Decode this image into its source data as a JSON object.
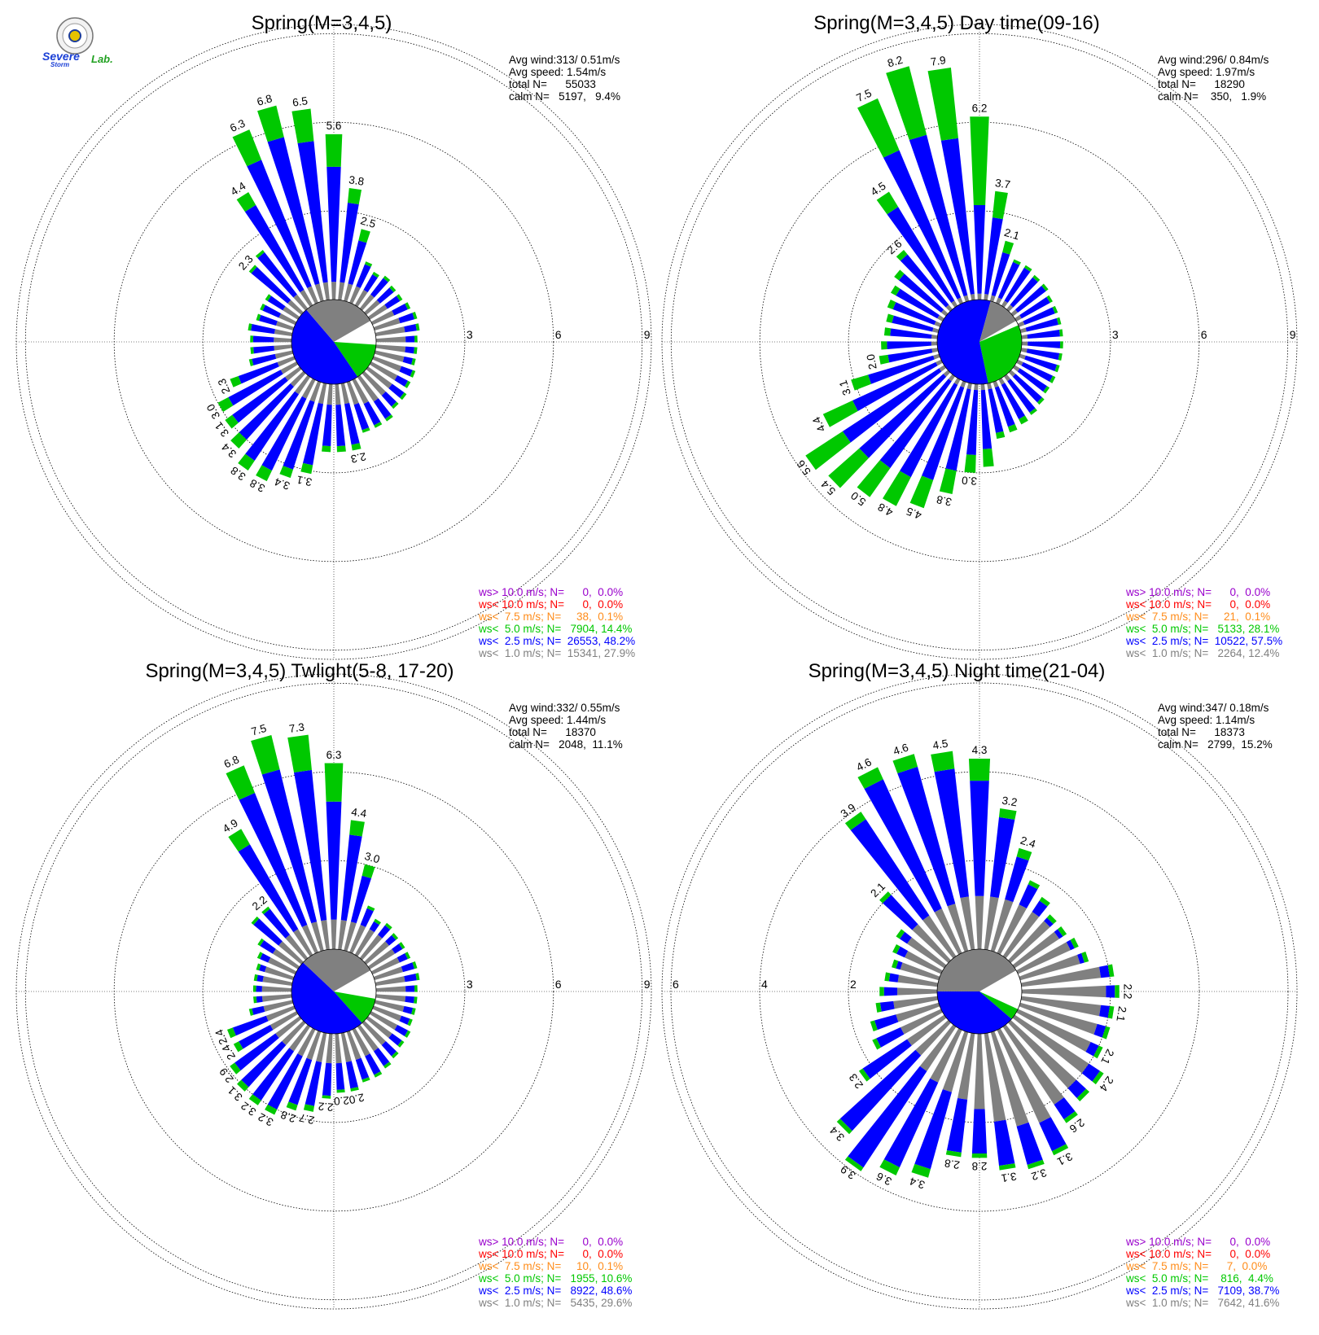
{
  "logo": {
    "text_severe": "Severe",
    "text_storm": "Storm",
    "text_lab": "Lab."
  },
  "colors": {
    "calm": "#ffffff",
    "ws_lt_1_0": "#808080",
    "ws_lt_2_5": "#0000ff",
    "ws_lt_5_0": "#00c800",
    "ws_lt_7_5": "#ff8c1a",
    "ws_lt_10_0": "#ff0000",
    "ws_gt_10_0": "#9900cc"
  },
  "chart_data": [
    {
      "type": "windrose",
      "title": "Spring(M=3,4,5)",
      "stats": {
        "avg_wind": "Avg wind:313/ 0.51m/s",
        "avg_speed": "Avg speed: 1.54m/s",
        "total": "total N=      55033",
        "calm": "calm N=   5197,   9.4%"
      },
      "legend": [
        {
          "label": "ws> 10.0 m/s; N=      0,  0.0%",
          "color": "#9900cc"
        },
        {
          "label": "ws< 10.0 m/s; N=      0,  0.0%",
          "color": "#ff0000"
        },
        {
          "label": "ws<  7.5 m/s; N=     38,  0.1%",
          "color": "#ff8c1a"
        },
        {
          "label": "ws<  5.0 m/s; N=   7904, 14.4%",
          "color": "#00c800"
        },
        {
          "label": "ws<  2.5 m/s; N=  26553, 48.2%",
          "color": "#0000ff"
        },
        {
          "label": "ws<  1.0 m/s; N=  15341, 27.9%",
          "color": "#808080"
        }
      ],
      "rings": [
        3,
        6,
        9
      ],
      "ring_labels": [
        "3",
        "6",
        "9"
      ],
      "ring_label_side": "right",
      "pie_pct": [
        9.4,
        14.4,
        48.2,
        27.9
      ],
      "bars_total": [
        5.6,
        3.8,
        2.5,
        1.5,
        1.3,
        1.4,
        1.3,
        1.3,
        1.4,
        1.5,
        1.5,
        1.4,
        1.4,
        1.4,
        1.5,
        1.5,
        1.6,
        1.6,
        1.8,
        1.8,
        1.8,
        2.3,
        2.3,
        2.3,
        3.1,
        3.4,
        3.8,
        3.8,
        3.4,
        3.1,
        3.0,
        2.3,
        1.5,
        1.4,
        1.4,
        1.5,
        1.3,
        1.3,
        1.3,
        2.3,
        2.5,
        4.4,
        6.3,
        6.8,
        6.5
      ],
      "bars_green": [
        1.1,
        0.5,
        0.4,
        0.1,
        0.1,
        0.1,
        0.1,
        0.1,
        0.1,
        0.1,
        0.1,
        0.1,
        0.1,
        0.1,
        0.1,
        0.1,
        0.1,
        0.1,
        0.1,
        0.1,
        0.1,
        0.2,
        0.2,
        0.2,
        0.3,
        0.3,
        0.4,
        0.4,
        0.4,
        0.3,
        0.4,
        0.3,
        0.1,
        0.1,
        0.1,
        0.1,
        0.1,
        0.1,
        0.1,
        0.1,
        0.1,
        0.5,
        1.1,
        1.1,
        1.1
      ],
      "bars_gray": [
        0.6,
        0.6,
        0.6,
        0.6,
        0.6,
        0.6,
        0.6,
        0.7,
        0.8,
        0.9,
        1.0,
        1.0,
        1.0,
        1.0,
        1.0,
        1.0,
        1.0,
        1.0,
        1.0,
        0.9,
        0.8,
        0.7,
        0.7,
        0.7,
        0.7,
        0.7,
        0.7,
        0.7,
        0.6,
        0.6,
        0.6,
        0.6,
        0.6,
        0.6,
        0.6,
        0.6,
        0.6,
        0.6,
        0.6,
        0.6,
        0.6,
        0.6,
        0.6,
        0.6,
        0.6
      ],
      "labels": [
        {
          "i": 0,
          "text": "5.6"
        },
        {
          "i": 1,
          "text": "3.8"
        },
        {
          "i": 2,
          "text": "2.5"
        },
        {
          "i": 21,
          "text": "2.3"
        },
        {
          "i": 24,
          "text": "3.1"
        },
        {
          "i": 25,
          "text": "3.4"
        },
        {
          "i": 26,
          "text": "3.8"
        },
        {
          "i": 27,
          "text": "3.8"
        },
        {
          "i": 28,
          "text": "3.4"
        },
        {
          "i": 29,
          "text": "3.1"
        },
        {
          "i": 30,
          "text": "3.0"
        },
        {
          "i": 31,
          "text": "2.3"
        },
        {
          "i": 39,
          "text": "2.3"
        },
        {
          "i": 41,
          "text": "4.4"
        },
        {
          "i": 42,
          "text": "6.3"
        },
        {
          "i": 43,
          "text": "6.8"
        },
        {
          "i": 44,
          "text": "6.5"
        }
      ]
    },
    {
      "type": "windrose",
      "title": "Spring(M=3,4,5) Day time(09-16)",
      "stats": {
        "avg_wind": "Avg wind:296/ 0.84m/s",
        "avg_speed": "Avg speed: 1.97m/s",
        "total": "total N=      18290",
        "calm": "calm N=    350,   1.9%"
      },
      "legend": [
        {
          "label": "ws> 10.0 m/s; N=      0,  0.0%",
          "color": "#9900cc"
        },
        {
          "label": "ws< 10.0 m/s; N=      0,  0.0%",
          "color": "#ff0000"
        },
        {
          "label": "ws<  7.5 m/s; N=     21,  0.1%",
          "color": "#ff8c1a"
        },
        {
          "label": "ws<  5.0 m/s; N=   5133, 28.1%",
          "color": "#00c800"
        },
        {
          "label": "ws<  2.5 m/s; N=  10522, 57.5%",
          "color": "#0000ff"
        },
        {
          "label": "ws<  1.0 m/s; N=   2264, 12.4%",
          "color": "#808080"
        }
      ],
      "rings": [
        3,
        6,
        9
      ],
      "ring_labels": [
        "3",
        "6",
        "9"
      ],
      "ring_label_side": "right",
      "pie_pct": [
        1.9,
        28.1,
        57.5,
        12.4
      ],
      "bars_total": [
        6.2,
        3.7,
        2.1,
        1.6,
        1.6,
        1.5,
        1.5,
        1.4,
        1.4,
        1.4,
        1.4,
        1.4,
        1.4,
        1.4,
        1.4,
        1.4,
        1.5,
        1.6,
        1.7,
        1.8,
        1.9,
        2.8,
        3.0,
        3.8,
        4.5,
        4.8,
        5.0,
        5.4,
        5.6,
        4.4,
        3.1,
        2.0,
        1.9,
        1.8,
        1.8,
        1.9,
        2.0,
        2.2,
        2.6,
        4.5,
        7.5,
        8.2,
        7.9
      ],
      "bars_green": [
        3.0,
        0.9,
        0.4,
        0.1,
        0.1,
        0.1,
        0.1,
        0.1,
        0.1,
        0.1,
        0.1,
        0.1,
        0.1,
        0.1,
        0.1,
        0.1,
        0.1,
        0.1,
        0.2,
        0.2,
        0.2,
        0.6,
        0.6,
        0.8,
        1.0,
        1.1,
        1.2,
        1.4,
        1.5,
        1.1,
        0.6,
        0.3,
        0.2,
        0.2,
        0.2,
        0.2,
        0.2,
        0.2,
        0.2,
        0.6,
        1.9,
        2.4,
        2.4
      ],
      "bars_gray": [
        0.2,
        0.2,
        0.2,
        0.2,
        0.2,
        0.2,
        0.2,
        0.2,
        0.2,
        0.2,
        0.2,
        0.2,
        0.2,
        0.2,
        0.2,
        0.2,
        0.2,
        0.2,
        0.2,
        0.2,
        0.2,
        0.2,
        0.2,
        0.2,
        0.2,
        0.2,
        0.2,
        0.2,
        0.2,
        0.2,
        0.2,
        0.2,
        0.2,
        0.2,
        0.2,
        0.2,
        0.2,
        0.2,
        0.2,
        0.2,
        0.2,
        0.2,
        0.2
      ],
      "labels": [
        {
          "i": 0,
          "text": "6.2"
        },
        {
          "i": 1,
          "text": "3.7"
        },
        {
          "i": 2,
          "text": "2.1"
        },
        {
          "i": 22,
          "text": "3.0"
        },
        {
          "i": 23,
          "text": "3.8"
        },
        {
          "i": 24,
          "text": "4.5"
        },
        {
          "i": 25,
          "text": "4.8"
        },
        {
          "i": 26,
          "text": "5.0"
        },
        {
          "i": 27,
          "text": "5.4"
        },
        {
          "i": 28,
          "text": "5.6"
        },
        {
          "i": 29,
          "text": "4.4"
        },
        {
          "i": 30,
          "text": "3.1"
        },
        {
          "i": 31,
          "text": "2.0"
        },
        {
          "i": 38,
          "text": "2.6"
        },
        {
          "i": 39,
          "text": "4.5"
        },
        {
          "i": 40,
          "text": "7.5"
        },
        {
          "i": 41,
          "text": "8.2"
        },
        {
          "i": 42,
          "text": "7.9"
        }
      ]
    },
    {
      "type": "windrose",
      "title": "Spring(M=3,4,5) Twlight(5-8, 17-20)",
      "stats": {
        "avg_wind": "Avg wind:332/ 0.55m/s",
        "avg_speed": "Avg speed: 1.44m/s",
        "total": "total N=      18370",
        "calm": "calm N=   2048,  11.1%"
      },
      "legend": [
        {
          "label": "ws> 10.0 m/s; N=      0,  0.0%",
          "color": "#9900cc"
        },
        {
          "label": "ws< 10.0 m/s; N=      0,  0.0%",
          "color": "#ff0000"
        },
        {
          "label": "ws<  7.5 m/s; N=     10,  0.1%",
          "color": "#ff8c1a"
        },
        {
          "label": "ws<  5.0 m/s; N=   1955, 10.6%",
          "color": "#00c800"
        },
        {
          "label": "ws<  2.5 m/s; N=   8922, 48.6%",
          "color": "#0000ff"
        },
        {
          "label": "ws<  1.0 m/s; N=   5435, 29.6%",
          "color": "#808080"
        }
      ],
      "rings": [
        3,
        6,
        9
      ],
      "ring_labels": [
        "3",
        "6",
        "9"
      ],
      "ring_label_side": "right",
      "pie_pct": [
        11.1,
        10.6,
        48.6,
        29.6
      ],
      "bars_total": [
        6.3,
        4.4,
        3.0,
        1.7,
        1.4,
        1.5,
        1.4,
        1.4,
        1.4,
        1.5,
        1.5,
        1.4,
        1.4,
        1.4,
        1.4,
        1.5,
        1.5,
        1.6,
        1.7,
        1.8,
        1.8,
        2.0,
        2.0,
        2.2,
        2.7,
        2.8,
        3.2,
        3.2,
        3.1,
        2.9,
        2.4,
        2.4,
        1.5,
        1.3,
        1.3,
        1.3,
        1.3,
        1.4,
        1.6,
        2.2,
        2.2,
        4.9,
        6.8,
        7.5,
        7.3
      ],
      "bars_green": [
        1.3,
        0.5,
        0.4,
        0.1,
        0.1,
        0.1,
        0.1,
        0.1,
        0.1,
        0.1,
        0.1,
        0.1,
        0.1,
        0.1,
        0.1,
        0.1,
        0.1,
        0.1,
        0.1,
        0.1,
        0.1,
        0.1,
        0.1,
        0.1,
        0.2,
        0.2,
        0.2,
        0.2,
        0.2,
        0.2,
        0.2,
        0.2,
        0.1,
        0.1,
        0.1,
        0.1,
        0.1,
        0.1,
        0.1,
        0.1,
        0.1,
        0.6,
        1.0,
        1.2,
        1.2
      ],
      "bars_gray": [
        1.0,
        1.0,
        1.0,
        1.0,
        1.0,
        1.0,
        1.0,
        1.0,
        1.0,
        1.0,
        1.0,
        1.0,
        1.0,
        1.0,
        1.0,
        1.0,
        1.0,
        1.0,
        1.0,
        1.0,
        1.0,
        1.0,
        1.0,
        1.0,
        1.0,
        1.0,
        1.0,
        1.0,
        1.0,
        1.0,
        1.0,
        1.0,
        1.0,
        1.0,
        1.0,
        1.0,
        1.0,
        1.0,
        1.0,
        1.0,
        1.0,
        1.0,
        1.0,
        1.0,
        1.0
      ],
      "labels": [
        {
          "i": 0,
          "text": "6.3"
        },
        {
          "i": 1,
          "text": "4.4"
        },
        {
          "i": 2,
          "text": "3.0"
        },
        {
          "i": 21,
          "text": "2.0"
        },
        {
          "i": 22,
          "text": "2.0"
        },
        {
          "i": 23,
          "text": "2.2"
        },
        {
          "i": 24,
          "text": "2.7"
        },
        {
          "i": 25,
          "text": "2.8"
        },
        {
          "i": 26,
          "text": "3.2"
        },
        {
          "i": 27,
          "text": "3.2"
        },
        {
          "i": 28,
          "text": "3.1"
        },
        {
          "i": 29,
          "text": "2.9"
        },
        {
          "i": 30,
          "text": "2.4"
        },
        {
          "i": 31,
          "text": "2.4"
        },
        {
          "i": 40,
          "text": "2.2"
        },
        {
          "i": 41,
          "text": "4.9"
        },
        {
          "i": 42,
          "text": "6.8"
        },
        {
          "i": 43,
          "text": "7.5"
        },
        {
          "i": 44,
          "text": "7.3"
        }
      ]
    },
    {
      "type": "windrose",
      "title": "Spring(M=3,4,5) Night time(21-04)",
      "stats": {
        "avg_wind": "Avg wind:347/ 0.18m/s",
        "avg_speed": "Avg speed: 1.14m/s",
        "total": "total N=      18373",
        "calm": "calm N=   2799,  15.2%"
      },
      "legend": [
        {
          "label": "ws> 10.0 m/s; N=      0,  0.0%",
          "color": "#9900cc"
        },
        {
          "label": "ws< 10.0 m/s; N=      0,  0.0%",
          "color": "#ff0000"
        },
        {
          "label": "ws<  7.5 m/s; N=      7,  0.0%",
          "color": "#ff8c1a"
        },
        {
          "label": "ws<  5.0 m/s; N=    816,  4.4%",
          "color": "#00c800"
        },
        {
          "label": "ws<  2.5 m/s; N=   7109, 38.7%",
          "color": "#0000ff"
        },
        {
          "label": "ws<  1.0 m/s; N=   7642, 41.6%",
          "color": "#808080"
        }
      ],
      "rings": [
        2,
        4,
        6
      ],
      "ring_labels": [
        "2",
        "4",
        "6"
      ],
      "ring_label_side": "left",
      "pie_pct": [
        15.2,
        4.4,
        38.7,
        41.6
      ],
      "bars_total": [
        4.3,
        3.2,
        2.4,
        1.8,
        1.6,
        1.4,
        1.4,
        1.5,
        1.6,
        2.1,
        2.2,
        2.1,
        2.1,
        2.1,
        2.4,
        2.4,
        2.6,
        3.1,
        3.2,
        3.1,
        2.8,
        2.8,
        3.4,
        3.6,
        3.9,
        3.4,
        2.3,
        1.7,
        1.6,
        1.4,
        1.3,
        1.2,
        1.1,
        1.2,
        1.3,
        2.1,
        3.9,
        4.6,
        4.6,
        4.5
      ],
      "bars_green": [
        0.5,
        0.2,
        0.2,
        0.1,
        0.1,
        0.1,
        0.1,
        0.1,
        0.1,
        0.1,
        0.1,
        0.1,
        0.1,
        0.1,
        0.1,
        0.1,
        0.1,
        0.1,
        0.1,
        0.1,
        0.1,
        0.1,
        0.2,
        0.2,
        0.1,
        0.1,
        0.1,
        0.1,
        0.1,
        0.1,
        0.1,
        0.1,
        0.1,
        0.1,
        0.1,
        0.1,
        0.2,
        0.3,
        0.3,
        0.4
      ],
      "bars_gray": [
        1.2,
        1.2,
        1.2,
        1.2,
        1.2,
        1.2,
        1.2,
        1.3,
        1.4,
        1.8,
        1.9,
        1.8,
        1.8,
        1.8,
        2.0,
        2.0,
        2.1,
        2.3,
        2.2,
        2.0,
        1.7,
        1.5,
        1.4,
        1.3,
        1.2,
        1.0,
        1.0,
        1.0,
        1.0,
        1.0,
        0.9,
        0.9,
        0.9,
        0.9,
        1.0,
        1.1,
        1.1,
        1.1,
        1.1,
        1.2
      ],
      "labels": [
        {
          "i": 0,
          "text": "4.3"
        },
        {
          "i": 1,
          "text": "3.2"
        },
        {
          "i": 2,
          "text": "2.4"
        },
        {
          "i": 10,
          "text": "2.2"
        },
        {
          "i": 11,
          "text": "2.1"
        },
        {
          "i": 13,
          "text": "2.1"
        },
        {
          "i": 14,
          "text": "2.4"
        },
        {
          "i": 16,
          "text": "2.6"
        },
        {
          "i": 17,
          "text": "3.1"
        },
        {
          "i": 18,
          "text": "3.2"
        },
        {
          "i": 19,
          "text": "3.1"
        },
        {
          "i": 20,
          "text": "2.8"
        },
        {
          "i": 21,
          "text": "2.8"
        },
        {
          "i": 22,
          "text": "3.4"
        },
        {
          "i": 23,
          "text": "3.6"
        },
        {
          "i": 24,
          "text": "3.9"
        },
        {
          "i": 25,
          "text": "3.4"
        },
        {
          "i": 26,
          "text": "2.3"
        },
        {
          "i": 35,
          "text": "2.1"
        },
        {
          "i": 36,
          "text": "3.9"
        },
        {
          "i": 37,
          "text": "4.6"
        },
        {
          "i": 38,
          "text": "4.6"
        },
        {
          "i": 39,
          "text": "4.5"
        }
      ]
    }
  ]
}
